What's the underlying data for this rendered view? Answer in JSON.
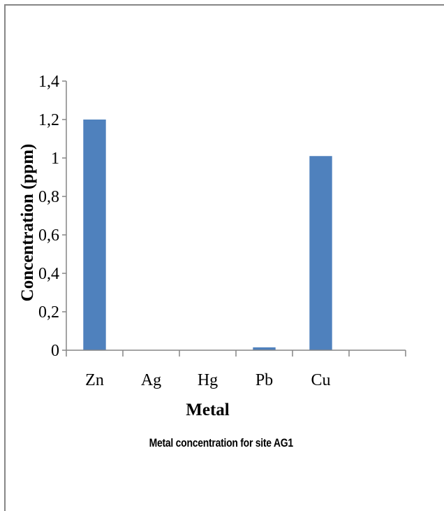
{
  "chart_data": {
    "type": "bar",
    "categories": [
      "Zn",
      "Ag",
      "Hg",
      "Pb",
      "Cu",
      ""
    ],
    "values": [
      1.2,
      0,
      0,
      0.015,
      1.01,
      0
    ],
    "ylabel": "Concentration (ppm)",
    "xlabel": "Metal",
    "ylim": [
      0,
      1.4
    ],
    "yticks": [
      "0",
      "0,2",
      "0,4",
      "0,6",
      "0,8",
      "1",
      "1,2",
      "1,4"
    ],
    "bar_color": "#4f81bd",
    "grid": false,
    "legend": "none"
  },
  "caption": "Metal  concentration for site AG1"
}
